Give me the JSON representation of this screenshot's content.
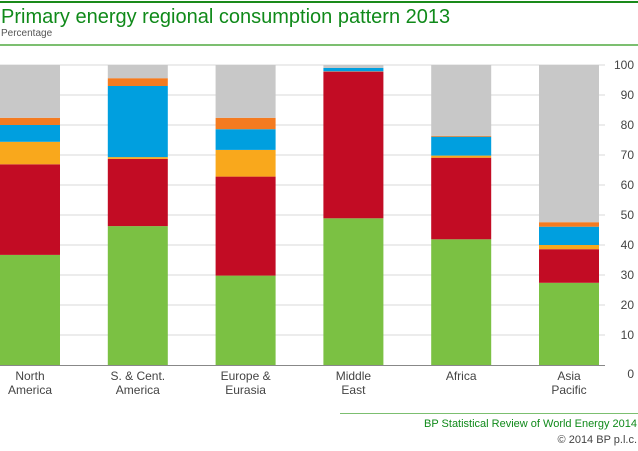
{
  "header": {
    "title": "Primary energy regional consumption pattern 2013",
    "subtitle": "Percentage"
  },
  "footer": {
    "source": "BP Statistical Review of World Energy 2014",
    "copyright": "© 2014 BP p.l.c."
  },
  "chart_data": {
    "type": "bar",
    "stacked": true,
    "title": "Primary energy regional consumption pattern 2013",
    "ylabel": "Percentage",
    "ylim": [
      0,
      100
    ],
    "yticks": [
      0,
      10,
      20,
      30,
      40,
      50,
      60,
      70,
      80,
      90,
      100
    ],
    "y_axis_side": "right",
    "grid": true,
    "legend": "none",
    "categories": [
      [
        "North",
        "America"
      ],
      [
        "S. & Cent.",
        "America"
      ],
      [
        "Europe &",
        "Eurasia"
      ],
      [
        "Middle",
        "East"
      ],
      [
        "Africa"
      ],
      [
        "Asia",
        "Pacific"
      ]
    ],
    "series": [
      {
        "color": "#7bc143",
        "values": [
          36.7,
          46.3,
          29.8,
          48.9,
          41.9,
          27.4
        ]
      },
      {
        "color": "#c20c24",
        "values": [
          30.2,
          22.4,
          33.0,
          48.9,
          27.2,
          11.2
        ]
      },
      {
        "color": "#f9a81c",
        "values": [
          7.5,
          0.6,
          8.9,
          0.1,
          0.7,
          1.4
        ]
      },
      {
        "color": "#009fdf",
        "values": [
          5.6,
          23.7,
          6.9,
          1.1,
          6.3,
          6.1
        ]
      },
      {
        "color": "#f47b20",
        "values": [
          2.4,
          2.6,
          3.8,
          0.0,
          0.3,
          1.5
        ]
      },
      {
        "color": "#c8c8c8",
        "values": [
          17.6,
          4.4,
          17.6,
          1.0,
          23.6,
          52.4
        ]
      }
    ]
  }
}
